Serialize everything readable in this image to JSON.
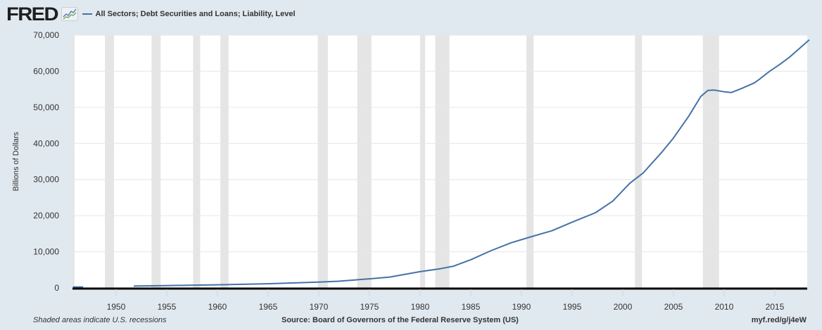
{
  "header": {
    "logo_text": "FRED",
    "logo_icon": "fred-chart-icon",
    "series_label": "All Sectors; Debt Securities and Loans; Liability, Level"
  },
  "footer": {
    "recession_note": "Shaded areas indicate U.S. recessions",
    "source": "Source: Board of Governors of the Federal Reserve System (US)",
    "short_url": "myf.red/g/j4eW"
  },
  "colors": {
    "background": "#e1e9f0",
    "plot_background": "#ffffff",
    "line": "#4572a7",
    "recession": "#e5e5e5",
    "grid": "#e6e6e6",
    "axis": "#000000"
  },
  "chart_data": {
    "type": "line",
    "title": "All Sectors; Debt Securities and Loans; Liability, Level",
    "xlabel": "",
    "ylabel": "Billions of Dollars",
    "xlim": [
      1945.7,
      2018.2
    ],
    "ylim": [
      0,
      70000
    ],
    "grid": true,
    "legend_position": "top-left",
    "x_ticks": [
      1950,
      1955,
      1960,
      1965,
      1970,
      1975,
      1980,
      1985,
      1990,
      1995,
      2000,
      2005,
      2010,
      2015
    ],
    "y_ticks": [
      0,
      10000,
      20000,
      30000,
      40000,
      50000,
      60000,
      70000
    ],
    "y_tick_labels": [
      "0",
      "10,000",
      "20,000",
      "30,000",
      "40,000",
      "50,000",
      "60,000",
      "70,000"
    ],
    "recessions": [
      [
        1945.7,
        1945.9
      ],
      [
        1948.9,
        1949.8
      ],
      [
        1953.5,
        1954.4
      ],
      [
        1957.6,
        1958.3
      ],
      [
        1960.3,
        1961.1
      ],
      [
        1969.9,
        1970.9
      ],
      [
        1973.8,
        1975.2
      ],
      [
        1980.0,
        1980.5
      ],
      [
        1981.5,
        1982.9
      ],
      [
        1990.5,
        1991.2
      ],
      [
        2001.2,
        2001.9
      ],
      [
        2007.9,
        2009.5
      ]
    ],
    "series": [
      {
        "name": "All Sectors; Debt Securities and Loans; Liability, Level",
        "segments": [
          {
            "x": [
              1945.75,
              1946.75
            ],
            "y": [
              230,
              250
            ]
          },
          {
            "x": [
              1951.75,
              1955,
              1960,
              1965,
              1970,
              1972,
              1975,
              1977,
              1980,
              1982,
              1983.3,
              1985,
              1987,
              1989,
              1991,
              1993,
              1995,
              1997.3,
              1999,
              2000.7,
              2002,
              2003.8,
              2005,
              2006.5,
              2007.7,
              2008.4,
              2009,
              2010,
              2010.7,
              2011.8,
              2013,
              2013.5,
              2014.5,
              2015.5,
              2016.5,
              2017.8,
              2018.4
            ],
            "y": [
              500,
              650,
              850,
              1150,
              1600,
              1850,
              2500,
              3000,
              4500,
              5300,
              6000,
              7800,
              10300,
              12500,
              14200,
              15800,
              18200,
              20800,
              24000,
              29000,
              31800,
              37400,
              41500,
              47500,
              53000,
              54700,
              54800,
              54300,
              54100,
              55300,
              56800,
              57800,
              60000,
              61900,
              64000,
              67200,
              68700
            ]
          }
        ]
      }
    ]
  }
}
